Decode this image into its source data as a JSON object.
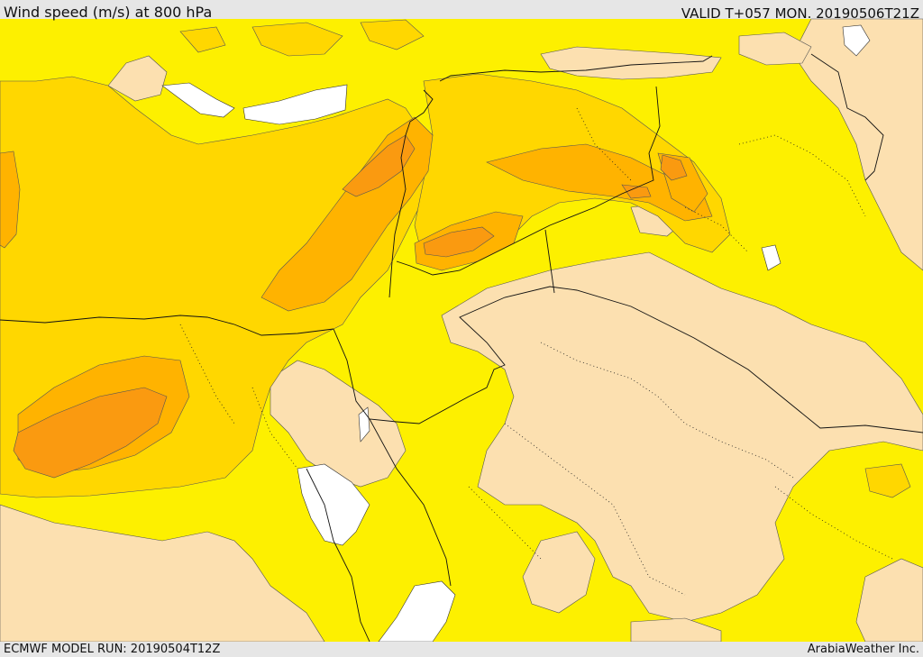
{
  "header": {
    "title": "Wind speed (m/s) at 800 hPa",
    "valid": "VALID T+057 MON. 20190506T21Z"
  },
  "footer": {
    "model_run": "ECMWF MODEL RUN: 20190504T12Z",
    "credit": "ArabiaWeather Inc."
  },
  "colors": {
    "band_light": "#fce0b0",
    "band_yellow": "#fdf000",
    "band_gold": "#ffd700",
    "band_amber": "#ffb300",
    "band_orange": "#fa9a10",
    "no_data_water": "#ffffff",
    "header_bar": "#e6e6e6"
  }
}
